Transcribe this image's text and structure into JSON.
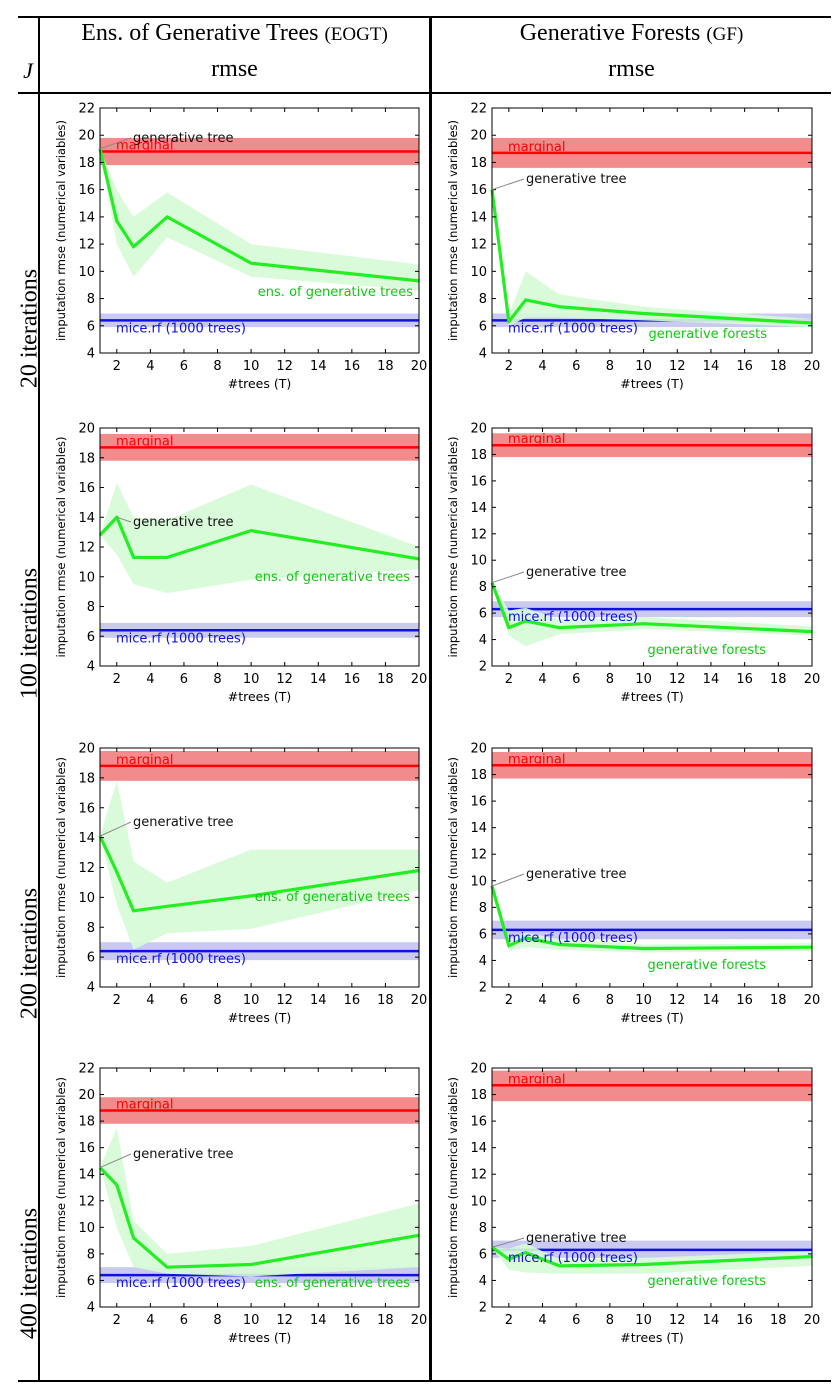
{
  "table": {
    "corner": "J",
    "col_headers": [
      {
        "title": "Ens. of Generative Trees",
        "abbr": "(EOGT)",
        "metric": "rmse"
      },
      {
        "title": "Generative Forests",
        "abbr": "(GF)",
        "metric": "rmse"
      }
    ],
    "row_labels": [
      "20 iterations",
      "100 iterations",
      "200 iterations",
      "400 iterations"
    ]
  },
  "colors": {
    "marginal": "#ff0000",
    "marginal_band": "#f07878",
    "mice": "#1010e0",
    "mice_band": "#c4c4f0",
    "model": "#22ee22",
    "model_band": "#d6fbd6",
    "axis": "#000000"
  },
  "chart_data": [
    {
      "type": "line",
      "row": "20 iterations",
      "col": "EOGT",
      "xlabel": "#trees (T)",
      "ylabel": "imputation rmse (numerical variables)",
      "xlim": [
        1,
        20
      ],
      "ylim": [
        4,
        22
      ],
      "xticks": [
        2,
        4,
        6,
        8,
        10,
        12,
        14,
        16,
        18,
        20
      ],
      "yticks": [
        4,
        6,
        8,
        10,
        12,
        14,
        16,
        18,
        20,
        22
      ],
      "marginal": {
        "label": "marginal",
        "value": 18.8,
        "band": [
          17.8,
          19.8
        ]
      },
      "mice": {
        "label": "mice.rf (1000 trees)",
        "value": 6.4,
        "band": [
          5.9,
          6.9
        ]
      },
      "series": {
        "name": "ens. of generative trees",
        "x": [
          1,
          2,
          3,
          5,
          10,
          20
        ],
        "y": [
          19,
          13.7,
          11.8,
          14,
          10.6,
          9.3
        ],
        "lo": [
          19,
          12,
          9.6,
          12.5,
          9.6,
          8.6
        ],
        "hi": [
          19,
          16,
          14,
          15.8,
          12,
          10.5
        ]
      },
      "annotations": [
        {
          "text": "generative tree",
          "x": 1,
          "y": 19
        }
      ]
    },
    {
      "type": "line",
      "row": "20 iterations",
      "col": "GF",
      "xlabel": "#trees (T)",
      "ylabel": "imputation rmse (numerical variables)",
      "xlim": [
        1,
        20
      ],
      "ylim": [
        4,
        22
      ],
      "xticks": [
        2,
        4,
        6,
        8,
        10,
        12,
        14,
        16,
        18,
        20
      ],
      "yticks": [
        4,
        6,
        8,
        10,
        12,
        14,
        16,
        18,
        20,
        22
      ],
      "marginal": {
        "label": "marginal",
        "value": 18.7,
        "band": [
          17.6,
          19.8
        ]
      },
      "mice": {
        "label": "mice.rf (1000 trees)",
        "value": 6.4,
        "band": [
          5.9,
          6.9
        ]
      },
      "series": {
        "name": "generative forests",
        "x": [
          1,
          2,
          3,
          5,
          10,
          20
        ],
        "y": [
          16,
          6.3,
          7.9,
          7.4,
          6.9,
          6.2
        ],
        "lo": [
          16,
          6,
          6.6,
          6.6,
          6.4,
          5.9
        ],
        "hi": [
          16,
          6.8,
          10,
          8.3,
          7.4,
          6.5
        ]
      },
      "annotations": [
        {
          "text": "generative tree",
          "x": 1,
          "y": 16
        }
      ]
    },
    {
      "type": "line",
      "row": "100 iterations",
      "col": "EOGT",
      "xlabel": "#trees (T)",
      "ylabel": "imputation rmse (numerical variables)",
      "xlim": [
        1,
        20
      ],
      "ylim": [
        4,
        20
      ],
      "xticks": [
        2,
        4,
        6,
        8,
        10,
        12,
        14,
        16,
        18,
        20
      ],
      "yticks": [
        4,
        6,
        8,
        10,
        12,
        14,
        16,
        18,
        20
      ],
      "marginal": {
        "label": "marginal",
        "value": 18.7,
        "band": [
          17.8,
          19.6
        ]
      },
      "mice": {
        "label": "mice.rf (1000 trees)",
        "value": 6.4,
        "band": [
          5.9,
          6.9
        ]
      },
      "series": {
        "name": "ens. of generative trees",
        "x": [
          1,
          2,
          3,
          5,
          10,
          20
        ],
        "y": [
          12.8,
          14,
          11.3,
          11.3,
          13.1,
          11.2
        ],
        "lo": [
          12.8,
          11.5,
          9.5,
          8.9,
          9.8,
          10.5
        ],
        "hi": [
          12.8,
          16.3,
          14,
          13.8,
          16.2,
          12
        ]
      },
      "annotations": [
        {
          "text": "generative tree",
          "x": 2,
          "y": 14
        }
      ]
    },
    {
      "type": "line",
      "row": "100 iterations",
      "col": "GF",
      "xlabel": "#trees (T)",
      "ylabel": "imputation rmse (numerical variables)",
      "xlim": [
        1,
        20
      ],
      "ylim": [
        2,
        20
      ],
      "xticks": [
        2,
        4,
        6,
        8,
        10,
        12,
        14,
        16,
        18,
        20
      ],
      "yticks": [
        2,
        4,
        6,
        8,
        10,
        12,
        14,
        16,
        18,
        20
      ],
      "marginal": {
        "label": "marginal",
        "value": 18.7,
        "band": [
          17.8,
          19.6
        ]
      },
      "mice": {
        "label": "mice.rf (1000 trees)",
        "value": 6.3,
        "band": [
          5.7,
          6.9
        ]
      },
      "series": {
        "name": "generative forests",
        "x": [
          1,
          2,
          3,
          5,
          10,
          20
        ],
        "y": [
          8.3,
          4.9,
          5.4,
          4.9,
          5.2,
          4.6
        ],
        "lo": [
          8.3,
          4.3,
          3.5,
          4.4,
          4.8,
          4.3
        ],
        "hi": [
          8.3,
          6.2,
          6.4,
          5.5,
          5.7,
          5.0
        ]
      },
      "annotations": [
        {
          "text": "generative tree",
          "x": 1,
          "y": 8.3
        }
      ]
    },
    {
      "type": "line",
      "row": "200 iterations",
      "col": "EOGT",
      "xlabel": "#trees (T)",
      "ylabel": "imputation rmse (numerical variables)",
      "xlim": [
        1,
        20
      ],
      "ylim": [
        4,
        20
      ],
      "xticks": [
        2,
        4,
        6,
        8,
        10,
        12,
        14,
        16,
        18,
        20
      ],
      "yticks": [
        4,
        6,
        8,
        10,
        12,
        14,
        16,
        18,
        20
      ],
      "marginal": {
        "label": "marginal",
        "value": 18.8,
        "band": [
          17.8,
          19.8
        ]
      },
      "mice": {
        "label": "mice.rf (1000 trees)",
        "value": 6.4,
        "band": [
          5.8,
          7
        ]
      },
      "series": {
        "name": "ens. of generative trees",
        "x": [
          1,
          2,
          3,
          5,
          10,
          20
        ],
        "y": [
          14.1,
          11.7,
          9.1,
          9.4,
          10.1,
          11.8
        ],
        "lo": [
          14.1,
          9.5,
          6.5,
          7.6,
          7.9,
          10.5
        ],
        "hi": [
          14.1,
          17.8,
          12.4,
          11,
          13.2,
          13.2
        ]
      },
      "annotations": [
        {
          "text": "generative tree",
          "x": 1,
          "y": 14.1
        }
      ]
    },
    {
      "type": "line",
      "row": "200 iterations",
      "col": "GF",
      "xlabel": "#trees (T)",
      "ylabel": "imputation rmse (numerical variables)",
      "xlim": [
        1,
        20
      ],
      "ylim": [
        2,
        20
      ],
      "xticks": [
        2,
        4,
        6,
        8,
        10,
        12,
        14,
        16,
        18,
        20
      ],
      "yticks": [
        2,
        4,
        6,
        8,
        10,
        12,
        14,
        16,
        18,
        20
      ],
      "marginal": {
        "label": "marginal",
        "value": 18.7,
        "band": [
          17.7,
          19.7
        ]
      },
      "mice": {
        "label": "mice.rf (1000 trees)",
        "value": 6.3,
        "band": [
          5.6,
          7.0
        ]
      },
      "series": {
        "name": "generative forests",
        "x": [
          1,
          2,
          3,
          5,
          10,
          20
        ],
        "y": [
          9.6,
          5.1,
          5.7,
          5.2,
          4.9,
          5.0
        ],
        "lo": [
          9.6,
          4.7,
          5.0,
          4.8,
          4.6,
          4.7
        ],
        "hi": [
          9.6,
          5.6,
          6.1,
          5.6,
          5.2,
          5.3
        ]
      },
      "annotations": [
        {
          "text": "generative tree",
          "x": 1,
          "y": 9.6
        }
      ]
    },
    {
      "type": "line",
      "row": "400 iterations",
      "col": "EOGT",
      "xlabel": "#trees (T)",
      "ylabel": "imputation rmse (numerical variables)",
      "xlim": [
        1,
        20
      ],
      "ylim": [
        4,
        22
      ],
      "xticks": [
        2,
        4,
        6,
        8,
        10,
        12,
        14,
        16,
        18,
        20
      ],
      "yticks": [
        4,
        6,
        8,
        10,
        12,
        14,
        16,
        18,
        20,
        22
      ],
      "marginal": {
        "label": "marginal",
        "value": 18.8,
        "band": [
          17.8,
          19.8
        ]
      },
      "mice": {
        "label": "mice.rf (1000 trees)",
        "value": 6.4,
        "band": [
          5.8,
          7.0
        ]
      },
      "series": {
        "name": "ens. of generative trees",
        "x": [
          1,
          2,
          3,
          5,
          10,
          20
        ],
        "y": [
          14.5,
          13.2,
          9.2,
          7.0,
          7.2,
          9.4
        ],
        "lo": [
          14.5,
          10,
          7.0,
          6.5,
          6.3,
          7.0
        ],
        "hi": [
          14.5,
          17.5,
          10.5,
          8.0,
          8.6,
          11.8
        ]
      },
      "annotations": [
        {
          "text": "generative tree",
          "x": 1,
          "y": 14.5
        }
      ]
    },
    {
      "type": "line",
      "row": "400 iterations",
      "col": "GF",
      "xlabel": "#trees (T)",
      "ylabel": "imputation rmse (numerical variables)",
      "xlim": [
        1,
        20
      ],
      "ylim": [
        2,
        20
      ],
      "xticks": [
        2,
        4,
        6,
        8,
        10,
        12,
        14,
        16,
        18,
        20
      ],
      "yticks": [
        2,
        4,
        6,
        8,
        10,
        12,
        14,
        16,
        18,
        20
      ],
      "marginal": {
        "label": "marginal",
        "value": 18.7,
        "band": [
          17.5,
          19.8
        ]
      },
      "mice": {
        "label": "mice.rf (1000 trees)",
        "value": 6.3,
        "band": [
          5.7,
          7.0
        ]
      },
      "series": {
        "name": "generative forests",
        "x": [
          1,
          2,
          3,
          5,
          10,
          20
        ],
        "y": [
          6.5,
          5.6,
          6.1,
          5.1,
          5.2,
          5.8
        ],
        "lo": [
          6.5,
          4.8,
          4.6,
          4.5,
          4.5,
          5.1
        ],
        "hi": [
          6.5,
          6.4,
          6.8,
          5.6,
          5.7,
          6.2
        ]
      },
      "annotations": [
        {
          "text": "generative tree",
          "x": 1,
          "y": 6.5
        }
      ]
    }
  ]
}
